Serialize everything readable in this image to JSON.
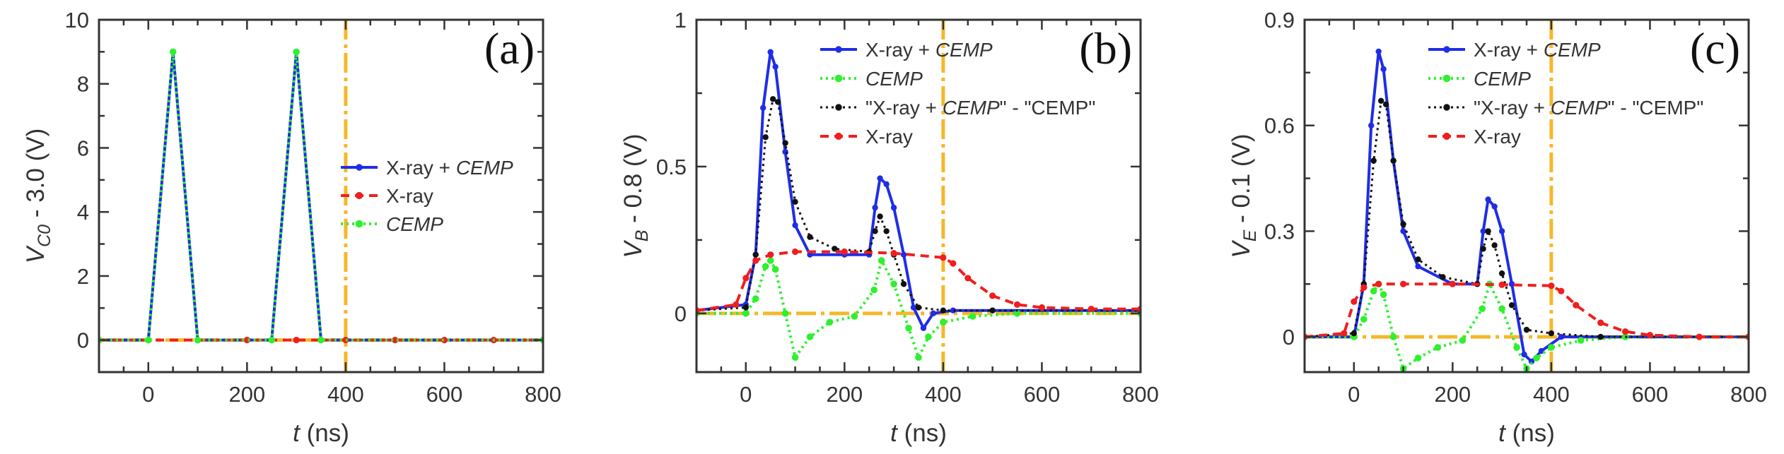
{
  "figure": {
    "colors": {
      "xray_cemp": "#1f2de6",
      "cemp": "#2ef02e",
      "diff": "#111111",
      "xray": "#f01e1e",
      "guide": "#f5b82a",
      "axis": "#333333"
    }
  },
  "chart_data": [
    {
      "type": "line",
      "panel": "(a)",
      "ylabel": "V_C0 - 3.0 (V)",
      "ylabel_parts": {
        "base": "V",
        "sub": "C0",
        "rest": " - 3.0 (V)"
      },
      "xlabel": "t (ns)",
      "xlabel_parts": {
        "var": "t",
        "rest": " (ns)"
      },
      "xlim": [
        -100,
        800
      ],
      "ylim": [
        -1,
        10
      ],
      "xticks": [
        0,
        200,
        400,
        600,
        800
      ],
      "yticks": [
        0,
        2,
        4,
        6,
        8,
        10
      ],
      "vline_x": 400,
      "hline_y": 0,
      "legend_position": "center-right",
      "legend": [
        {
          "label": "X-ray + CEMP",
          "plain": "X-ray + ",
          "ital": "CEMP",
          "tail": "",
          "style": "xray_cemp"
        },
        {
          "label": "X-ray",
          "plain": "X-ray",
          "ital": "",
          "tail": "",
          "style": "xray"
        },
        {
          "label": "CEMP",
          "plain": "",
          "ital": "CEMP",
          "tail": "",
          "style": "cemp"
        }
      ],
      "series": [
        {
          "name": "X-ray + CEMP",
          "style": "xray_cemp",
          "x": [
            -100,
            0,
            50,
            100,
            250,
            300,
            350,
            800
          ],
          "y": [
            0,
            0,
            9,
            0,
            0,
            9,
            0,
            0
          ]
        },
        {
          "name": "X-ray",
          "style": "xray",
          "x": [
            -100,
            0,
            100,
            200,
            300,
            400,
            500,
            600,
            700,
            800
          ],
          "y": [
            0,
            0,
            0,
            0,
            0,
            0,
            0,
            0,
            0,
            0
          ]
        },
        {
          "name": "CEMP",
          "style": "cemp",
          "x": [
            -100,
            0,
            50,
            100,
            250,
            300,
            350,
            800
          ],
          "y": [
            0,
            0,
            9,
            0,
            0,
            9,
            0,
            0
          ]
        }
      ]
    },
    {
      "type": "line",
      "panel": "(b)",
      "ylabel": "V_B - 0.8 (V)",
      "ylabel_parts": {
        "base": "V",
        "sub": "B",
        "rest": " - 0.8 (V)"
      },
      "xlabel": "t (ns)",
      "xlabel_parts": {
        "var": "t",
        "rest": " (ns)"
      },
      "xlim": [
        -100,
        800
      ],
      "ylim": [
        -0.2,
        1
      ],
      "xticks": [
        0,
        200,
        400,
        600,
        800
      ],
      "yticks": [
        0,
        0.5,
        1
      ],
      "ytick_labels": [
        "0",
        "0.5",
        "1"
      ],
      "vline_x": 400,
      "hline_y": 0,
      "legend_position": "top-right",
      "legend": [
        {
          "label": "X-ray + CEMP",
          "plain": "X-ray + ",
          "ital": "CEMP",
          "tail": "",
          "style": "xray_cemp"
        },
        {
          "label": "CEMP",
          "plain": "",
          "ital": "CEMP",
          "tail": "",
          "style": "cemp"
        },
        {
          "label": "\"X-ray + CEMP\" - \"CEMP\"",
          "plain": "\"X-ray + ",
          "ital": "CEMP",
          "tail": "\" - \"CEMP\"",
          "style": "diff"
        },
        {
          "label": "X-ray",
          "plain": "X-ray",
          "ital": "",
          "tail": "",
          "style": "xray"
        }
      ],
      "series": [
        {
          "name": "X-ray + CEMP",
          "style": "xray_cemp",
          "x": [
            -100,
            0,
            20,
            35,
            50,
            60,
            80,
            100,
            130,
            200,
            250,
            262,
            272,
            285,
            300,
            320,
            340,
            360,
            380,
            420,
            500,
            800
          ],
          "y": [
            0.01,
            0.03,
            0.2,
            0.7,
            0.89,
            0.84,
            0.55,
            0.3,
            0.2,
            0.2,
            0.2,
            0.36,
            0.46,
            0.44,
            0.36,
            0.2,
            0.02,
            -0.05,
            0.0,
            0.01,
            0.01,
            0.01
          ]
        },
        {
          "name": "CEMP",
          "style": "cemp",
          "x": [
            -100,
            0,
            20,
            40,
            50,
            60,
            80,
            100,
            130,
            170,
            220,
            260,
            275,
            300,
            330,
            350,
            370,
            400,
            460,
            550,
            800
          ],
          "y": [
            0,
            0,
            0.05,
            0.16,
            0.18,
            0.15,
            0.0,
            -0.15,
            -0.08,
            -0.03,
            -0.01,
            0.08,
            0.18,
            0.1,
            -0.05,
            -0.15,
            -0.08,
            -0.03,
            -0.01,
            0,
            0
          ]
        },
        {
          "name": "\"X-ray + CEMP\" - \"CEMP\"",
          "style": "diff",
          "x": [
            -100,
            0,
            20,
            40,
            55,
            65,
            80,
            100,
            130,
            180,
            250,
            262,
            272,
            285,
            300,
            320,
            350,
            400,
            500,
            800
          ],
          "y": [
            0.01,
            0.02,
            0.2,
            0.6,
            0.73,
            0.72,
            0.58,
            0.38,
            0.26,
            0.22,
            0.21,
            0.28,
            0.33,
            0.28,
            0.2,
            0.1,
            0.02,
            0.01,
            0.01,
            0.01
          ]
        },
        {
          "name": "X-ray",
          "style": "xray",
          "x": [
            -100,
            -20,
            0,
            20,
            50,
            100,
            200,
            300,
            400,
            420,
            450,
            500,
            550,
            600,
            700,
            800
          ],
          "y": [
            0.01,
            0.03,
            0.12,
            0.18,
            0.2,
            0.21,
            0.21,
            0.205,
            0.19,
            0.17,
            0.12,
            0.06,
            0.03,
            0.02,
            0.015,
            0.015
          ]
        }
      ]
    },
    {
      "type": "line",
      "panel": "(c)",
      "ylabel": "V_E - 0.1 (V)",
      "ylabel_parts": {
        "base": "V",
        "sub": "E",
        "rest": " - 0.1 (V)"
      },
      "xlabel": "t (ns)",
      "xlabel_parts": {
        "var": "t",
        "rest": " (ns)"
      },
      "xlim": [
        -100,
        800
      ],
      "ylim": [
        -0.1,
        0.9
      ],
      "xticks": [
        0,
        200,
        400,
        600,
        800
      ],
      "yticks": [
        0,
        0.3,
        0.6,
        0.9
      ],
      "ytick_labels": [
        "0",
        "0.3",
        "0.6",
        "0.9"
      ],
      "vline_x": 400,
      "hline_y": 0,
      "legend_position": "top-right",
      "legend": [
        {
          "label": "X-ray + CEMP",
          "plain": "X-ray + ",
          "ital": "CEMP",
          "tail": "",
          "style": "xray_cemp"
        },
        {
          "label": "CEMP",
          "plain": "",
          "ital": "CEMP",
          "tail": "",
          "style": "cemp"
        },
        {
          "label": "\"X-ray + CEMP\" - \"CEMP\"",
          "plain": "\"X-ray + ",
          "ital": "CEMP",
          "tail": "\" - \"CEMP\"",
          "style": "diff"
        },
        {
          "label": "X-ray",
          "plain": "X-ray",
          "ital": "",
          "tail": "",
          "style": "xray"
        }
      ],
      "series": [
        {
          "name": "X-ray + CEMP",
          "style": "xray_cemp",
          "x": [
            -100,
            0,
            20,
            35,
            50,
            60,
            80,
            100,
            130,
            200,
            250,
            262,
            272,
            285,
            300,
            320,
            345,
            360,
            380,
            420,
            500,
            800
          ],
          "y": [
            0,
            0,
            0.15,
            0.6,
            0.81,
            0.76,
            0.5,
            0.3,
            0.2,
            0.15,
            0.15,
            0.3,
            0.39,
            0.37,
            0.3,
            0.15,
            -0.05,
            -0.07,
            -0.04,
            0,
            0,
            0
          ]
        },
        {
          "name": "CEMP",
          "style": "cemp",
          "x": [
            -100,
            0,
            20,
            40,
            50,
            60,
            80,
            100,
            130,
            170,
            220,
            260,
            275,
            300,
            330,
            350,
            370,
            400,
            460,
            550,
            800
          ],
          "y": [
            0,
            0,
            0.05,
            0.13,
            0.15,
            0.12,
            0.0,
            -0.09,
            -0.06,
            -0.03,
            -0.01,
            0.08,
            0.15,
            0.08,
            -0.03,
            -0.09,
            -0.06,
            -0.03,
            -0.01,
            0,
            0
          ]
        },
        {
          "name": "\"X-ray + CEMP\" - \"CEMP\"",
          "style": "diff",
          "x": [
            -100,
            0,
            20,
            40,
            55,
            65,
            80,
            100,
            130,
            180,
            250,
            262,
            272,
            285,
            300,
            320,
            350,
            400,
            500,
            800
          ],
          "y": [
            0,
            0.01,
            0.15,
            0.5,
            0.67,
            0.66,
            0.5,
            0.32,
            0.22,
            0.17,
            0.15,
            0.25,
            0.3,
            0.26,
            0.18,
            0.09,
            0.02,
            0.01,
            0,
            0
          ]
        },
        {
          "name": "X-ray",
          "style": "xray",
          "x": [
            -100,
            -20,
            0,
            20,
            50,
            100,
            200,
            300,
            400,
            420,
            450,
            500,
            550,
            600,
            700,
            800
          ],
          "y": [
            0,
            0.01,
            0.1,
            0.14,
            0.15,
            0.15,
            0.15,
            0.148,
            0.145,
            0.13,
            0.09,
            0.04,
            0.015,
            0.005,
            0,
            0
          ]
        }
      ]
    }
  ]
}
